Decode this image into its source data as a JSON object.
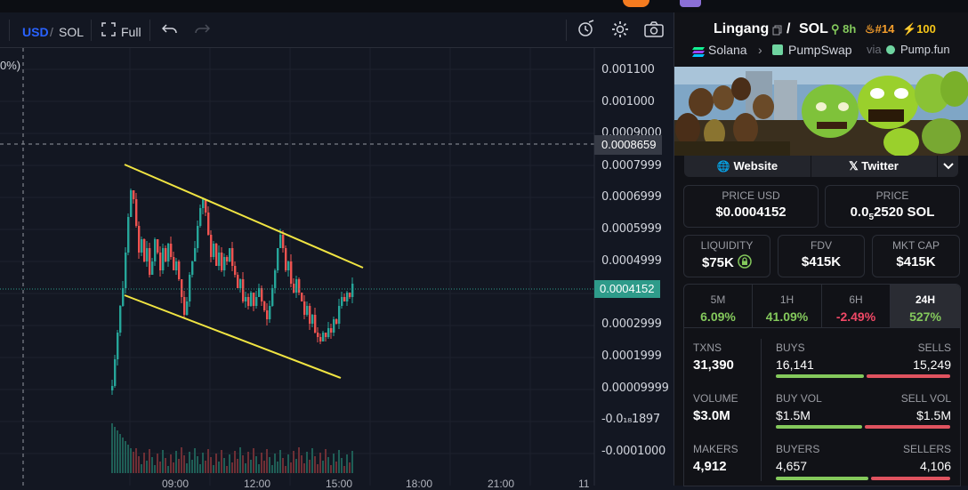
{
  "toolbar": {
    "currency_usd": "USD",
    "separator": "/",
    "currency_sol": "SOL",
    "fullscreen_label": "Full"
  },
  "chart": {
    "percent_fragment": "0%)",
    "price_ticks": [
      "0.001100",
      "0.001000",
      "0.0009000",
      "0.0007999",
      "0.0006999",
      "0.0005999",
      "0.0004999",
      "0.0002999",
      "0.0001999",
      "0.00009999",
      "-0.0₁₈1897",
      "-0.0001000"
    ],
    "crosshair_price": "0.0008659",
    "current_price": "0.0004152",
    "time_ticks": [
      "09:00",
      "12:00",
      "15:00",
      "18:00",
      "21:00",
      "11"
    ],
    "colors": {
      "up": "#26a69a",
      "down": "#ef5350",
      "trendline": "#f0e442"
    }
  },
  "token": {
    "name": "Lingang",
    "pair": "SOL",
    "age": "8h",
    "rank": "#14",
    "boost": "100",
    "chain": "Solana",
    "dex": "PumpSwap",
    "via": "via",
    "launchpad": "Pump.fun",
    "website_label": "Website",
    "twitter_label": "Twitter"
  },
  "metrics": {
    "price_usd_label": "PRICE USD",
    "price_usd": "$0.0004152",
    "price_label": "PRICE",
    "price_sol_prefix": "0.0",
    "price_sol_subscript": "5",
    "price_sol_rest": "2520 SOL",
    "liquidity_label": "LIQUIDITY",
    "liquidity": "$75K",
    "fdv_label": "FDV",
    "fdv": "$415K",
    "mktcap_label": "MKT CAP",
    "mktcap": "$415K"
  },
  "timeframes": [
    {
      "label": "5M",
      "change": "6.09%",
      "positive": true
    },
    {
      "label": "1H",
      "change": "41.09%",
      "positive": true
    },
    {
      "label": "6H",
      "change": "-2.49%",
      "positive": false
    },
    {
      "label": "24H",
      "change": "527%",
      "positive": true
    }
  ],
  "stats": {
    "txns_label": "TXNS",
    "txns": "31,390",
    "buys_label": "BUYS",
    "buys": "16,141",
    "sells_label": "SELLS",
    "sells": "15,249",
    "volume_label": "VOLUME",
    "volume": "$3.0M",
    "buy_vol_label": "BUY VOL",
    "buy_vol": "$1.5M",
    "sell_vol_label": "SELL VOL",
    "sell_vol": "$1.5M",
    "makers_label": "MAKERS",
    "makers": "4,912",
    "buyers_label": "BUYERS",
    "buyers": "4,657",
    "sellers_label": "SELLERS",
    "sellers": "4,106"
  }
}
